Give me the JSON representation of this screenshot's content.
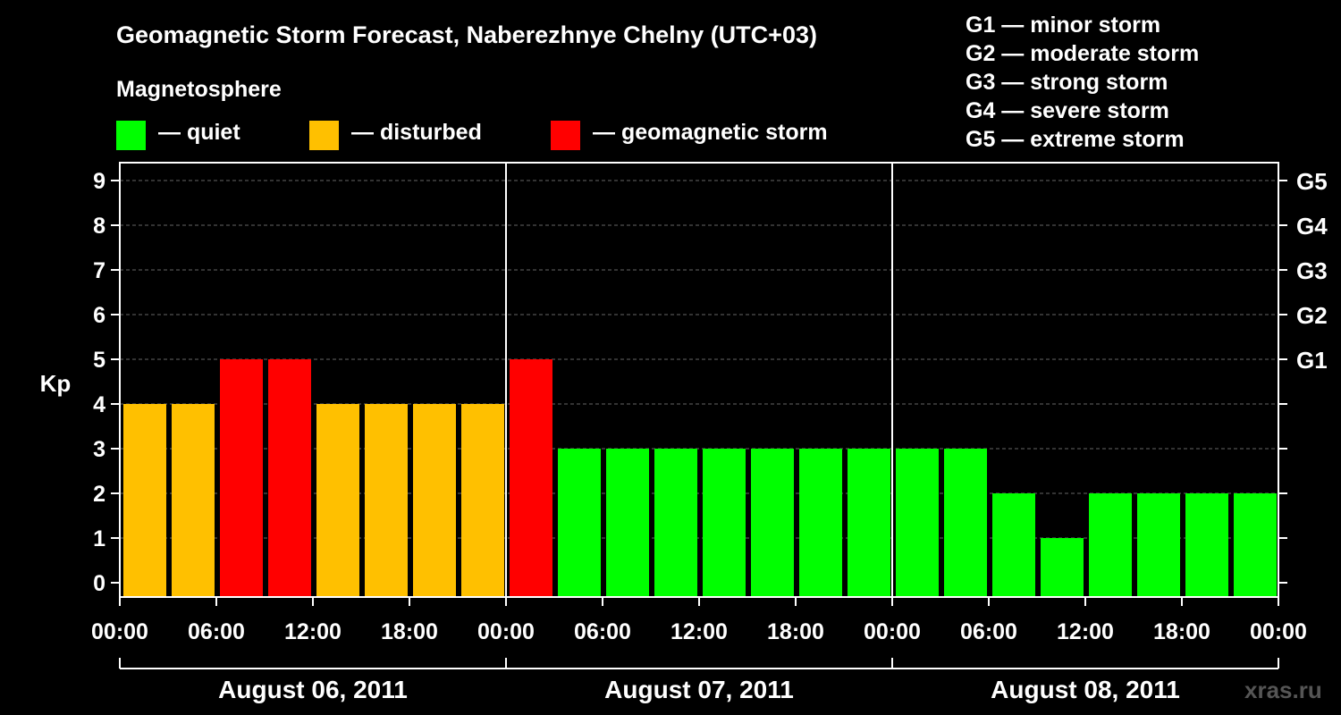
{
  "chart_data": {
    "type": "bar",
    "title": "Geomagnetic Storm Forecast, Naberezhnye Chelny (UTC+03)",
    "ylabel": "Kp",
    "ylim": [
      0,
      9
    ],
    "yticks": [
      "0",
      "1",
      "2",
      "3",
      "4",
      "5",
      "6",
      "7",
      "8",
      "9"
    ],
    "right_axis_labels": [
      {
        "kp": 5,
        "label": "G1"
      },
      {
        "kp": 6,
        "label": "G2"
      },
      {
        "kp": 7,
        "label": "G3"
      },
      {
        "kp": 8,
        "label": "G4"
      },
      {
        "kp": 9,
        "label": "G5"
      }
    ],
    "x_tick_labels": [
      "00:00",
      "06:00",
      "12:00",
      "18:00",
      "00:00",
      "06:00",
      "12:00",
      "18:00",
      "00:00",
      "06:00",
      "12:00",
      "18:00",
      "00:00"
    ],
    "days": [
      "August 06, 2011",
      "August 07, 2011",
      "August 08, 2011"
    ],
    "interval_hours": 3,
    "values": [
      4,
      4,
      5,
      5,
      4,
      4,
      4,
      4,
      5,
      3,
      3,
      3,
      3,
      3,
      3,
      3,
      3,
      3,
      2,
      1,
      2,
      2,
      2,
      2
    ],
    "magnetosphere_title": "Magnetosphere",
    "legend": [
      {
        "label": "— quiet",
        "color": "#00ff00"
      },
      {
        "label": "— disturbed",
        "color": "#ffc000"
      },
      {
        "label": "— geomagnetic storm",
        "color": "#ff0000"
      }
    ],
    "bar_colors": {
      "quiet": "#00ff00",
      "disturbed": "#ffc000",
      "storm": "#ff0000"
    },
    "g_scale": [
      "G1 — minor storm",
      "G2 — moderate storm",
      "G3 — strong storm",
      "G4 — severe storm",
      "G5 — extreme storm"
    ]
  },
  "watermark": "xras.ru"
}
